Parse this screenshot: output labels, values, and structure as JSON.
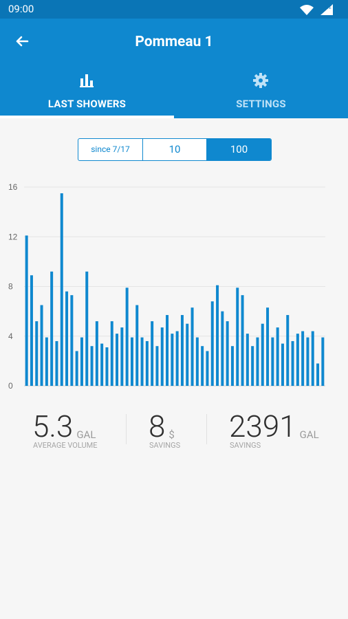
{
  "status_bar": {
    "time": "09:00"
  },
  "header": {
    "title": "Pommeau 1"
  },
  "tabs": [
    {
      "label": "LAST SHOWERS",
      "icon": "bar-chart-icon",
      "active": true
    },
    {
      "label": "SETTINGS",
      "icon": "gear-icon",
      "active": false
    }
  ],
  "range_selector": {
    "options": [
      "since 7/17",
      "10",
      "100"
    ],
    "selected": "100"
  },
  "chart_data": {
    "type": "bar",
    "y_ticks": [
      "0",
      "4",
      "8",
      "12",
      "16"
    ],
    "ylim": [
      0,
      16
    ],
    "grid": true,
    "color": "#0f88cf",
    "values": [
      12.1,
      8.9,
      5.2,
      6.5,
      3.9,
      9.2,
      3.6,
      15.5,
      7.6,
      7.3,
      2.8,
      3.9,
      9.2,
      3.2,
      5.2,
      3.4,
      3.1,
      5.2,
      4.2,
      4.7,
      7.9,
      3.9,
      6.5,
      3.9,
      3.6,
      5.2,
      3.2,
      4.7,
      5.7,
      4.2,
      4.4,
      5.7,
      5.0,
      6.3,
      3.9,
      3.2,
      2.8,
      6.8,
      8.1,
      6.0,
      5.2,
      3.2,
      7.9,
      7.3,
      4.2,
      3.2,
      3.9,
      5.0,
      6.3,
      3.9,
      4.7,
      3.4,
      5.7,
      3.6,
      4.2,
      4.4,
      3.9,
      4.4,
      1.8,
      3.9
    ]
  },
  "stats": [
    {
      "value": "5.3",
      "unit": "GAL",
      "caption": "AVERAGE VOLUME"
    },
    {
      "value": "8",
      "unit": "$",
      "caption": "SAVINGS"
    },
    {
      "value": "2391",
      "unit": "GAL",
      "caption": "SAVINGS"
    }
  ]
}
